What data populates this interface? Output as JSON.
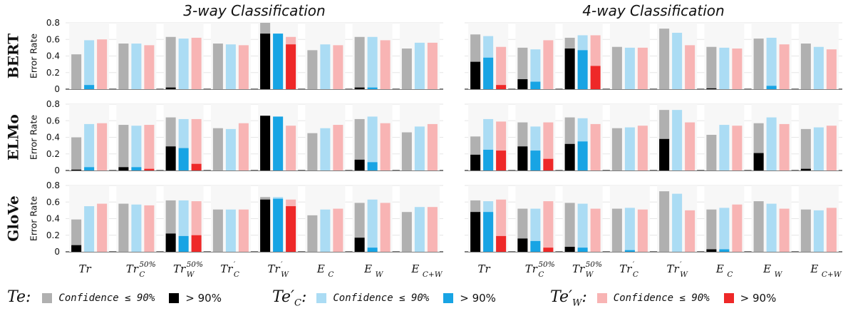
{
  "chart_data": {
    "type": "bar",
    "columns": [
      {
        "title": "3-way Classification"
      },
      {
        "title": "4-way Classification"
      }
    ],
    "rows": [
      {
        "label": "BERT"
      },
      {
        "label": "ELMo"
      },
      {
        "label": "GloVe"
      }
    ],
    "ylabel": "Error Rate",
    "ylim": [
      0,
      0.8
    ],
    "yticks": [
      "0",
      "0.2",
      "0.4",
      "0.6",
      "0.8"
    ],
    "categories": [
      {
        "base": "Tr",
        "sub": "",
        "sup": ""
      },
      {
        "base": "Tr",
        "sub": "C",
        "sup": "50%"
      },
      {
        "base": "Tr",
        "sub": "W",
        "sup": "50%"
      },
      {
        "base": "Tr",
        "sub": "C",
        "sup": "′"
      },
      {
        "base": "Tr",
        "sub": "W",
        "sup": "′"
      },
      {
        "base": "E",
        "sub": "C",
        "sup": ""
      },
      {
        "base": "E",
        "sub": "W",
        "sup": ""
      },
      {
        "base": "E",
        "sub": "C+W",
        "sup": ""
      }
    ],
    "series": [
      {
        "key": "Te",
        "low_color": "#b0b0b0",
        "high_color": "#000000"
      },
      {
        "key": "Te'C",
        "low_color": "#abdcf4",
        "high_color": "#18a4e4"
      },
      {
        "key": "Te'W",
        "low_color": "#f8b4b4",
        "high_color": "#ee2828"
      }
    ],
    "panels": [
      {
        "model": "BERT",
        "task": "3-way Classification",
        "total": [
          [
            0.42,
            0.59,
            0.6
          ],
          [
            0.55,
            0.55,
            0.53
          ],
          [
            0.63,
            0.61,
            0.62
          ],
          [
            0.55,
            0.54,
            0.53
          ],
          [
            0.8,
            0.67,
            0.63
          ],
          [
            0.47,
            0.54,
            0.53
          ],
          [
            0.63,
            0.63,
            0.59
          ],
          [
            0.49,
            0.56,
            0.56
          ]
        ],
        "high": [
          [
            0,
            0.05,
            0
          ],
          [
            0,
            0,
            0
          ],
          [
            0.02,
            0,
            0
          ],
          [
            0,
            0,
            0
          ],
          [
            0.67,
            0.67,
            0.54
          ],
          [
            0,
            0,
            0
          ],
          [
            0.02,
            0.02,
            0
          ],
          [
            0,
            0,
            0
          ]
        ]
      },
      {
        "model": "BERT",
        "task": "4-way Classification",
        "total": [
          [
            0.66,
            0.64,
            0.51
          ],
          [
            0.5,
            0.48,
            0.59
          ],
          [
            0.62,
            0.65,
            0.65
          ],
          [
            0.51,
            0.5,
            0.5
          ],
          [
            0.73,
            0.68,
            0.53
          ],
          [
            0.51,
            0.5,
            0.49
          ],
          [
            0.61,
            0.62,
            0.54
          ],
          [
            0.55,
            0.51,
            0.48
          ]
        ],
        "high": [
          [
            0.33,
            0.38,
            0.05
          ],
          [
            0.12,
            0.09,
            0
          ],
          [
            0.49,
            0.47,
            0.28
          ],
          [
            0,
            0,
            0
          ],
          [
            0,
            0,
            0
          ],
          [
            0.01,
            0,
            0
          ],
          [
            0,
            0.04,
            0
          ],
          [
            0,
            0,
            0
          ]
        ]
      },
      {
        "model": "ELMo",
        "task": "3-way Classification",
        "total": [
          [
            0.4,
            0.56,
            0.57
          ],
          [
            0.55,
            0.54,
            0.55
          ],
          [
            0.64,
            0.62,
            0.62
          ],
          [
            0.51,
            0.5,
            0.57
          ],
          [
            0.66,
            0.65,
            0.54
          ],
          [
            0.45,
            0.51,
            0.55
          ],
          [
            0.62,
            0.65,
            0.57
          ],
          [
            0.46,
            0.53,
            0.56
          ]
        ],
        "high": [
          [
            0.01,
            0.04,
            0
          ],
          [
            0.04,
            0.04,
            0.02
          ],
          [
            0.29,
            0.27,
            0.08
          ],
          [
            0,
            0,
            0
          ],
          [
            0.66,
            0.65,
            0
          ],
          [
            0,
            0,
            0
          ],
          [
            0.13,
            0.1,
            0
          ],
          [
            0,
            0,
            0
          ]
        ]
      },
      {
        "model": "ELMo",
        "task": "4-way Classification",
        "total": [
          [
            0.41,
            0.62,
            0.59
          ],
          [
            0.58,
            0.53,
            0.58
          ],
          [
            0.64,
            0.63,
            0.56
          ],
          [
            0.51,
            0.52,
            0.54
          ],
          [
            0.73,
            0.73,
            0.58
          ],
          [
            0.43,
            0.55,
            0.54
          ],
          [
            0.57,
            0.64,
            0.56
          ],
          [
            0.5,
            0.52,
            0.54
          ]
        ],
        "high": [
          [
            0.19,
            0.25,
            0.24
          ],
          [
            0.29,
            0.24,
            0.14
          ],
          [
            0.32,
            0.35,
            0
          ],
          [
            0,
            0,
            0
          ],
          [
            0.38,
            0,
            0
          ],
          [
            0,
            0,
            0
          ],
          [
            0.21,
            0,
            0
          ],
          [
            0.02,
            0,
            0
          ]
        ]
      },
      {
        "model": "GloVe",
        "task": "3-way Classification",
        "total": [
          [
            0.39,
            0.55,
            0.58
          ],
          [
            0.58,
            0.57,
            0.56
          ],
          [
            0.62,
            0.62,
            0.61
          ],
          [
            0.51,
            0.51,
            0.51
          ],
          [
            0.66,
            0.66,
            0.63
          ],
          [
            0.44,
            0.51,
            0.52
          ],
          [
            0.59,
            0.63,
            0.59
          ],
          [
            0.48,
            0.54,
            0.54
          ]
        ],
        "high": [
          [
            0.08,
            0,
            0
          ],
          [
            0,
            0,
            0
          ],
          [
            0.22,
            0.19,
            0.2
          ],
          [
            0,
            0,
            0
          ],
          [
            0.63,
            0.64,
            0.55
          ],
          [
            0,
            0,
            0
          ],
          [
            0.17,
            0.05,
            0
          ],
          [
            0,
            0,
            0
          ]
        ]
      },
      {
        "model": "GloVe",
        "task": "4-way Classification",
        "total": [
          [
            0.62,
            0.61,
            0.63
          ],
          [
            0.52,
            0.52,
            0.61
          ],
          [
            0.59,
            0.58,
            0.52
          ],
          [
            0.52,
            0.53,
            0.51
          ],
          [
            0.73,
            0.7,
            0.5
          ],
          [
            0.51,
            0.53,
            0.57
          ],
          [
            0.61,
            0.58,
            0.52
          ],
          [
            0.51,
            0.5,
            0.53
          ]
        ],
        "high": [
          [
            0.48,
            0.48,
            0.19
          ],
          [
            0.16,
            0.13,
            0.05
          ],
          [
            0.06,
            0.05,
            0
          ],
          [
            0,
            0.02,
            0
          ],
          [
            0,
            0,
            0
          ],
          [
            0.03,
            0.03,
            0
          ],
          [
            0,
            0,
            0
          ],
          [
            0,
            0,
            0
          ]
        ]
      }
    ],
    "grid": true,
    "legend_position": "bottom"
  },
  "legend": {
    "groups": [
      {
        "key_base": "Te",
        "key_sub": "",
        "key_prime": "",
        "low_label": "Confidence ≤ 90%",
        "high_label": "> 90%",
        "low_color": "#b0b0b0",
        "high_color": "#000000"
      },
      {
        "key_base": "Te",
        "key_sub": "C",
        "key_prime": "′",
        "low_label": "Confidence ≤ 90%",
        "high_label": "> 90%",
        "low_color": "#abdcf4",
        "high_color": "#18a4e4"
      },
      {
        "key_base": "Te",
        "key_sub": "W",
        "key_prime": "′",
        "low_label": "Confidence ≤ 90%",
        "high_label": "> 90%",
        "low_color": "#f8b4b4",
        "high_color": "#ee2828"
      }
    ]
  }
}
